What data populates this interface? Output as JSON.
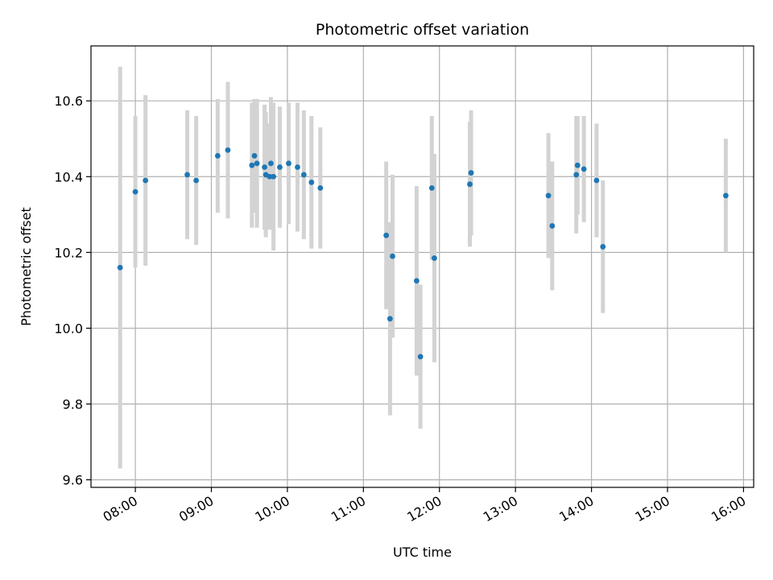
{
  "chart_data": {
    "type": "scatter",
    "title": "Photometric offset variation",
    "xlabel": "UTC time",
    "ylabel": "Photometric offset",
    "x_ticks": [
      "08:00",
      "09:00",
      "10:00",
      "11:00",
      "12:00",
      "13:00",
      "14:00",
      "15:00",
      "16:00"
    ],
    "y_ticks": [
      "9.6",
      "9.8",
      "10.0",
      "10.2",
      "10.4",
      "10.6"
    ],
    "xlim": [
      "07:25",
      "16:08"
    ],
    "ylim": [
      9.58,
      10.745
    ],
    "grid": true,
    "marker_color": "#1f77b4",
    "errorbar_color": "#d3d3d3",
    "series": [
      {
        "points": [
          {
            "x": "07:48",
            "y": 10.16,
            "err": 0.53
          },
          {
            "x": "08:00",
            "y": 10.36,
            "err": 0.2
          },
          {
            "x": "08:08",
            "y": 10.39,
            "err": 0.225
          },
          {
            "x": "08:41",
            "y": 10.405,
            "err": 0.17
          },
          {
            "x": "08:48",
            "y": 10.39,
            "err": 0.17
          },
          {
            "x": "09:05",
            "y": 10.455,
            "err": 0.15
          },
          {
            "x": "09:13",
            "y": 10.47,
            "err": 0.18
          },
          {
            "x": "09:32",
            "y": 10.43,
            "err": 0.165
          },
          {
            "x": "09:34",
            "y": 10.455,
            "err": 0.15
          },
          {
            "x": "09:36",
            "y": 10.435,
            "err": 0.17
          },
          {
            "x": "09:42",
            "y": 10.425,
            "err": 0.165
          },
          {
            "x": "09:43",
            "y": 10.405,
            "err": 0.165
          },
          {
            "x": "09:46",
            "y": 10.4,
            "err": 0.14
          },
          {
            "x": "09:47",
            "y": 10.435,
            "err": 0.175
          },
          {
            "x": "09:49",
            "y": 10.4,
            "err": 0.195
          },
          {
            "x": "09:54",
            "y": 10.425,
            "err": 0.16
          },
          {
            "x": "10:01",
            "y": 10.435,
            "err": 0.16
          },
          {
            "x": "10:08",
            "y": 10.425,
            "err": 0.17
          },
          {
            "x": "10:13",
            "y": 10.405,
            "err": 0.17
          },
          {
            "x": "10:19",
            "y": 10.385,
            "err": 0.175
          },
          {
            "x": "10:26",
            "y": 10.37,
            "err": 0.16
          },
          {
            "x": "11:18",
            "y": 10.245,
            "err": 0.195
          },
          {
            "x": "11:21",
            "y": 10.025,
            "err": 0.255
          },
          {
            "x": "11:23",
            "y": 10.19,
            "err": 0.215
          },
          {
            "x": "11:42",
            "y": 10.125,
            "err": 0.25
          },
          {
            "x": "11:45",
            "y": 9.925,
            "err": 0.19
          },
          {
            "x": "11:54",
            "y": 10.37,
            "err": 0.19
          },
          {
            "x": "11:56",
            "y": 10.185,
            "err": 0.275
          },
          {
            "x": "12:24",
            "y": 10.38,
            "err": 0.165
          },
          {
            "x": "12:25",
            "y": 10.41,
            "err": 0.165
          },
          {
            "x": "13:26",
            "y": 10.35,
            "err": 0.165
          },
          {
            "x": "13:29",
            "y": 10.27,
            "err": 0.17
          },
          {
            "x": "13:48",
            "y": 10.405,
            "err": 0.155
          },
          {
            "x": "13:49",
            "y": 10.43,
            "err": 0.13
          },
          {
            "x": "13:54",
            "y": 10.42,
            "err": 0.14
          },
          {
            "x": "14:04",
            "y": 10.39,
            "err": 0.15
          },
          {
            "x": "14:09",
            "y": 10.215,
            "err": 0.175
          },
          {
            "x": "15:46",
            "y": 10.35,
            "err": 0.15
          }
        ]
      }
    ]
  }
}
